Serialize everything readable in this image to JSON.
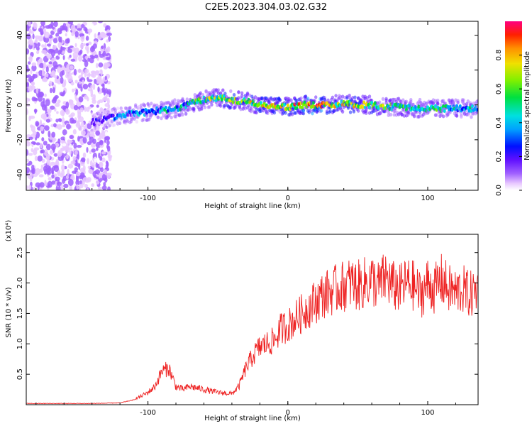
{
  "page_title": "C2E5.2023.304.03.02.G32",
  "chart_data": [
    {
      "type": "heatmap",
      "title": "C2E5.2023.304.03.02.G32",
      "xlabel": "Height of straight line (km)",
      "ylabel": "Frequency (Hz)",
      "xlim": [
        -187,
        136
      ],
      "ylim": [
        -49,
        48
      ],
      "x_ticks": [
        -100,
        0,
        100
      ],
      "x_tick_labels": [
        "-100",
        "0",
        "100"
      ],
      "y_ticks": [
        -40,
        -20,
        0,
        20,
        40
      ],
      "y_tick_labels": [
        "-40",
        "-20",
        "0",
        "20",
        "40"
      ],
      "grid": false,
      "colorbar": {
        "label": "Normalized spectral amplitude",
        "range": [
          0,
          1
        ],
        "ticks": [
          0.0,
          0.2,
          0.4,
          0.6,
          0.8
        ],
        "tick_labels": [
          "0.0",
          "0.2",
          "0.4",
          "0.6",
          "0.8"
        ],
        "colors": [
          "#ffffff",
          "#e8c8ff",
          "#a060ff",
          "#6010ff",
          "#0010ff",
          "#00a0ff",
          "#00e0e0",
          "#00e040",
          "#80f000",
          "#f0e000",
          "#ff9000",
          "#ff2000",
          "#ff0080"
        ]
      },
      "ridge": {
        "description_x": [
          -140,
          -120,
          -100,
          -80,
          -60,
          -50,
          -40,
          -30,
          -20,
          -10,
          0,
          10,
          20,
          30,
          40,
          50,
          60,
          70,
          80,
          90,
          100,
          110,
          120,
          136
        ],
        "center_freq": [
          -10,
          -6,
          -4,
          -2,
          3,
          4,
          3,
          2,
          0,
          -1,
          -1,
          0,
          0,
          0,
          1,
          0,
          0,
          -1,
          -1,
          -2,
          -2,
          -2,
          -2,
          -2
        ],
        "peak_amplitude": [
          0.3,
          0.45,
          0.55,
          0.6,
          0.7,
          0.75,
          0.8,
          0.8,
          0.85,
          0.9,
          0.9,
          0.95,
          1.0,
          0.9,
          0.85,
          0.85,
          0.8,
          0.75,
          0.7,
          0.7,
          0.65,
          0.65,
          0.6,
          0.55
        ]
      }
    },
    {
      "type": "line",
      "title": "",
      "xlabel": "Height of straight line (km)",
      "ylabel": "SNR (10 * v/v)",
      "y_multiplier": "(x10⁴)",
      "xlim": [
        -187,
        136
      ],
      "ylim": [
        0.0,
        2.8
      ],
      "x_ticks": [
        -100,
        0,
        100
      ],
      "x_tick_labels": [
        "-100",
        "0",
        "100"
      ],
      "y_ticks": [
        0.5,
        1.0,
        1.5,
        2.0,
        2.5
      ],
      "y_tick_labels": [
        "0.5",
        "1.0",
        "1.5",
        "2.0",
        "2.5"
      ],
      "grid": false,
      "color": "#ee2222",
      "series": [
        {
          "x": [
            -187,
            -160,
            -140,
            -120,
            -110,
            -100,
            -95,
            -90,
            -85,
            -80,
            -75,
            -70,
            -60,
            -50,
            -40,
            -35,
            -30,
            -25,
            -20,
            -15,
            -10,
            -5,
            0,
            5,
            10,
            15,
            20,
            25,
            30,
            35,
            40,
            45,
            50,
            55,
            60,
            65,
            70,
            75,
            80,
            85,
            90,
            95,
            100,
            105,
            110,
            115,
            120,
            125,
            130,
            136
          ],
          "values": [
            0.02,
            0.02,
            0.02,
            0.03,
            0.08,
            0.2,
            0.3,
            0.55,
            0.6,
            0.3,
            0.25,
            0.3,
            0.25,
            0.2,
            0.18,
            0.3,
            0.6,
            0.8,
            0.95,
            1.0,
            1.05,
            1.25,
            1.3,
            1.4,
            1.5,
            1.6,
            1.7,
            1.8,
            1.85,
            1.9,
            1.95,
            2.0,
            1.95,
            2.0,
            2.05,
            1.95,
            2.1,
            1.95,
            1.9,
            2.0,
            1.95,
            1.8,
            2.0,
            1.9,
            2.05,
            1.9,
            1.85,
            1.9,
            1.8,
            1.9
          ]
        }
      ]
    }
  ]
}
